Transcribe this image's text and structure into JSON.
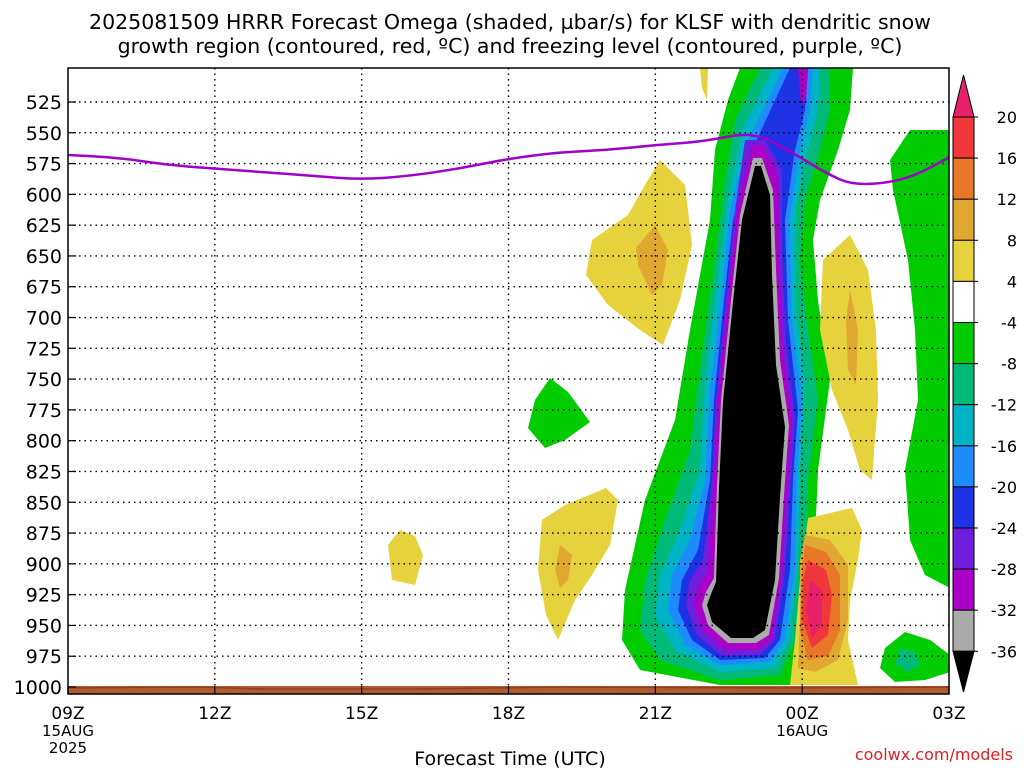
{
  "chart_data": {
    "type": "heatmap",
    "title_line1": "2025081509 HRRR Forecast Omega (shaded, µbar/s) for KLSF with dendritic snow",
    "title_line2": "growth region (contoured, red, ºC) and freezing level (contoured, purple, ºC)",
    "xlabel": "Forecast Time (UTC)",
    "ylabel": "",
    "x_range": [
      0,
      18
    ],
    "x_ticks": [
      {
        "x": 0,
        "label": "09Z",
        "sub1": "15AUG",
        "sub2": "2025"
      },
      {
        "x": 3,
        "label": "12Z",
        "sub1": "",
        "sub2": ""
      },
      {
        "x": 6,
        "label": "15Z",
        "sub1": "",
        "sub2": ""
      },
      {
        "x": 9,
        "label": "18Z",
        "sub1": "",
        "sub2": ""
      },
      {
        "x": 12,
        "label": "21Z",
        "sub1": "",
        "sub2": ""
      },
      {
        "x": 15,
        "label": "00Z",
        "sub1": "16AUG",
        "sub2": ""
      },
      {
        "x": 18,
        "label": "03Z",
        "sub1": "",
        "sub2": ""
      }
    ],
    "y_ticks": [
      "525",
      "550",
      "575",
      "600",
      "625",
      "650",
      "675",
      "700",
      "725",
      "750",
      "775",
      "800",
      "825",
      "850",
      "875",
      "900",
      "925",
      "950",
      "975",
      "1000"
    ],
    "y_range_hPa": [
      1010,
      505
    ],
    "colorbar": {
      "labels": [
        "20",
        "16",
        "12",
        "8",
        "4",
        "-4",
        "-8",
        "-12",
        "-16",
        "-20",
        "-24",
        "-28",
        "-32",
        "-36"
      ],
      "colors": [
        "#e8206c",
        "#f0383c",
        "#e87828",
        "#e0a830",
        "#e6d23c",
        "#ffffff",
        "#00cc00",
        "#00bb77",
        "#00b4c8",
        "#1e8cff",
        "#1e32e6",
        "#6e1edc",
        "#aa00c8",
        "#aaaaaa",
        "#000000"
      ]
    },
    "freezing_level": {
      "color": "#a000c8",
      "x": [
        0,
        1,
        2,
        3,
        4,
        5,
        6,
        7,
        8,
        9,
        10,
        11,
        12,
        13,
        14,
        14.8,
        15.5,
        16,
        16.7,
        17.3,
        18
      ],
      "hPa": [
        568,
        570,
        576,
        579,
        582,
        585,
        588,
        585,
        579,
        571,
        566,
        564,
        560,
        557,
        549,
        566,
        583,
        592,
        591,
        585,
        570
      ]
    },
    "surface_color": "#b45a32",
    "credit": "coolwx.com/models"
  }
}
